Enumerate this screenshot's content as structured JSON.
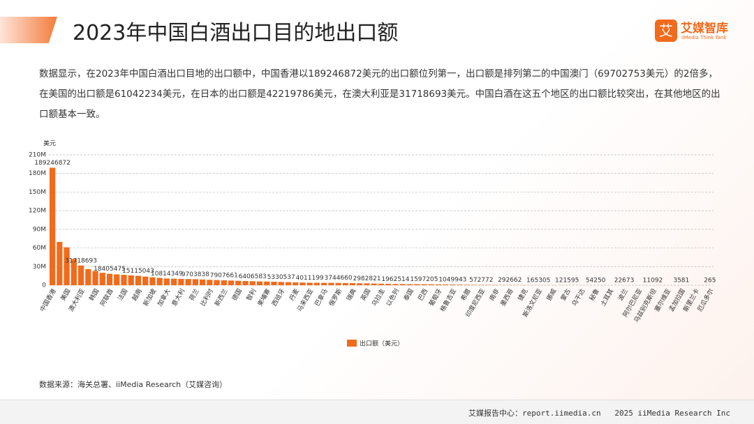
{
  "header": {
    "title": "2023年中国白酒出口目的地出口额",
    "logo": "艾媒智库",
    "logo_sub": "iiMedia Think Tank"
  },
  "summary": "数据显示，在2023年中国白酒出口目地的出口额中，中国香港以189246872美元的出口额位列第一，出口额是排列第二的中国澳门（69702753美元）的2倍多，在美国的出口额是61042234美元，在日本的出口额是42219786美元，在澳大利亚是31718693美元。中国白酒在这五个地区的出口额比较突出，在其他地区的出口额基本一致。",
  "chart_data": {
    "type": "bar",
    "y_unit": "美元",
    "color": "#f26a1b",
    "grid": true,
    "legend": "bottom",
    "series_name": "出口额（美元）",
    "ylim": [
      0,
      210000000
    ],
    "yticks": [
      0,
      {
        "value": 30000000,
        "label": "30M"
      },
      {
        "value": 60000000,
        "label": "60M"
      },
      {
        "value": 90000000,
        "label": "90M"
      },
      {
        "value": 120000000,
        "label": "120M"
      },
      {
        "value": 150000000,
        "label": "150M"
      },
      {
        "value": 180000000,
        "label": "180M"
      },
      {
        "value": 210000000,
        "label": "210M"
      }
    ],
    "categories": [
      "中国香港",
      null,
      "美国",
      null,
      "澳大利亚",
      null,
      "韩国",
      null,
      "阿联酋",
      null,
      "法国",
      null,
      "越南",
      null,
      "新加坡",
      null,
      "加拿大",
      null,
      "意大利",
      null,
      "荷兰",
      null,
      "比利时",
      null,
      "新西兰",
      null,
      "德国",
      null,
      "智利",
      null,
      "柬埔寨",
      null,
      "西班牙",
      null,
      "丹麦",
      null,
      "马来西亚",
      null,
      "巴拿马",
      null,
      "俄罗斯",
      null,
      "瑞典",
      null,
      "英国",
      null,
      "乌拉圭",
      null,
      "以色列",
      null,
      "泰国",
      null,
      "巴西",
      null,
      "葡萄牙",
      null,
      "格鲁吉亚",
      null,
      "希腊",
      null,
      "印度尼西亚",
      null,
      "南非",
      null,
      "墨西哥",
      null,
      "捷克",
      null,
      "斯洛文尼亚",
      null,
      "挪威",
      null,
      "蒙古",
      null,
      "乌干达",
      null,
      "秘鲁",
      null,
      "土耳其",
      null,
      "波兰",
      null,
      "阿尔巴尼亚",
      null,
      "乌兹别克斯坦",
      null,
      "塞尔维亚",
      null,
      "孟加拉国",
      null,
      "斯里兰卡",
      null,
      "厄瓜多尔"
    ],
    "values": [
      189246872,
      69702753,
      61042234,
      42219786,
      31718693,
      26000000,
      23000000,
      20000000,
      18405475,
      17500000,
      16700000,
      15900000,
      15115043,
      13900000,
      12800000,
      11800000,
      10814349,
      10500000,
      10200000,
      9950000,
      9703838,
      9200000,
      8700000,
      8300000,
      7907661,
      7500000,
      7100000,
      6750000,
      6406583,
      6100000,
      5850000,
      5600000,
      5330537,
      4980000,
      4640000,
      4320000,
      4011199,
      3940000,
      3870000,
      3810000,
      3744660,
      3540000,
      3350000,
      3160000,
      2982821,
      2700000,
      2430000,
      2190000,
      1962514,
      1860000,
      1770000,
      1680000,
      1597205,
      1440000,
      1300000,
      1170000,
      1049943,
      900000,
      770000,
      660000,
      572772,
      480000,
      410000,
      340000,
      292662,
      250000,
      215000,
      190000,
      165305,
      153000,
      142000,
      131000,
      121595,
      97000,
      80000,
      65000,
      54250,
      43000,
      34000,
      28000,
      22673,
      18000,
      15000,
      13000,
      11092,
      8000,
      6000,
      4700,
      3581,
      2000,
      1100,
      600,
      265
    ],
    "value_labels": [
      "189246872",
      null,
      null,
      null,
      "31718693",
      null,
      null,
      null,
      "18405475",
      null,
      null,
      null,
      "15115043",
      null,
      null,
      null,
      "10814349",
      null,
      null,
      null,
      "9703838",
      null,
      null,
      null,
      "7907661",
      null,
      null,
      null,
      "6406583",
      null,
      null,
      null,
      "5330537",
      null,
      null,
      null,
      "4011199",
      null,
      null,
      null,
      "3744660",
      null,
      null,
      null,
      "2982821",
      null,
      null,
      null,
      "1962514",
      null,
      null,
      null,
      "1597205",
      null,
      null,
      null,
      "1049943",
      null,
      null,
      null,
      "572772",
      null,
      null,
      null,
      "292662",
      null,
      null,
      null,
      "165305",
      null,
      null,
      null,
      "121595",
      null,
      null,
      null,
      "54250",
      null,
      null,
      null,
      "22673",
      null,
      null,
      null,
      "11092",
      null,
      null,
      null,
      "3581",
      null,
      null,
      null,
      "265"
    ]
  },
  "source": "数据来源：海关总署、iiMedia Research（艾媒咨询）",
  "footer": "艾媒报告中心：report.iimedia.cn   2025 iiMedia Research Inc"
}
